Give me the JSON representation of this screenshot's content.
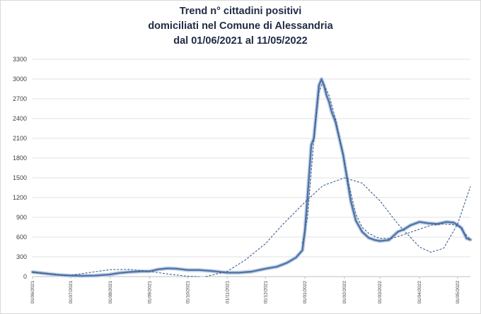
{
  "title": {
    "line1": "Trend n° cittadini positivi",
    "line2": "domiciliati nel Comune di Alessandria",
    "line3": "dal 01/06/2021 al 11/05/2022"
  },
  "colors": {
    "series": "#4f74a8",
    "series_shadow": "#c5d3e6",
    "trend": "#3d5f92",
    "grid": "#d9d9d9",
    "axis": "#bfbfbf"
  },
  "chart_data": {
    "type": "line",
    "title": "Trend n° cittadini positivi domiciliati nel Comune di Alessandria dal 01/06/2021 al 11/05/2022",
    "xlabel": "",
    "ylabel": "",
    "ylim": [
      0,
      3300
    ],
    "yticks": [
      0,
      300,
      600,
      900,
      1200,
      1500,
      1800,
      2100,
      2400,
      2700,
      3000,
      3300
    ],
    "xlim": [
      "2021-06-01",
      "2022-05-11"
    ],
    "xticks": [
      "01/06/2021",
      "01/07/2021",
      "01/08/2021",
      "01/09/2021",
      "01/10/2021",
      "01/11/2021",
      "01/12/2021",
      "01/01/2022",
      "01/02/2022",
      "01/03/2022",
      "01/04/2022",
      "01/05/2022"
    ],
    "grid": "horizontal",
    "legend": "none",
    "series": [
      {
        "style": "solid",
        "x": [
          "2021-06-01",
          "2021-06-08",
          "2021-06-15",
          "2021-06-22",
          "2021-07-01",
          "2021-07-10",
          "2021-07-20",
          "2021-07-31",
          "2021-08-08",
          "2021-08-16",
          "2021-08-26",
          "2021-09-01",
          "2021-09-08",
          "2021-09-15",
          "2021-09-22",
          "2021-10-01",
          "2021-10-10",
          "2021-10-20",
          "2021-11-01",
          "2021-11-10",
          "2021-11-20",
          "2021-12-01",
          "2021-12-10",
          "2021-12-18",
          "2021-12-25",
          "2021-12-30",
          "2022-01-01",
          "2022-01-03",
          "2022-01-06",
          "2022-01-08",
          "2022-01-10",
          "2022-01-12",
          "2022-01-14",
          "2022-01-16",
          "2022-01-18",
          "2022-01-20",
          "2022-01-22",
          "2022-01-25",
          "2022-01-28",
          "2022-01-31",
          "2022-02-03",
          "2022-02-06",
          "2022-02-10",
          "2022-02-15",
          "2022-02-20",
          "2022-02-25",
          "2022-03-01",
          "2022-03-08",
          "2022-03-15",
          "2022-03-20",
          "2022-03-25",
          "2022-04-01",
          "2022-04-08",
          "2022-04-15",
          "2022-04-22",
          "2022-04-28",
          "2022-05-04",
          "2022-05-08",
          "2022-05-11"
        ],
        "values": [
          70,
          55,
          40,
          25,
          15,
          12,
          15,
          30,
          55,
          70,
          80,
          80,
          110,
          125,
          120,
          100,
          100,
          85,
          60,
          60,
          75,
          120,
          150,
          210,
          290,
          400,
          700,
          1200,
          2000,
          2100,
          2500,
          2900,
          3000,
          2900,
          2750,
          2650,
          2500,
          2350,
          2100,
          1850,
          1500,
          1150,
          850,
          680,
          590,
          555,
          540,
          555,
          680,
          720,
          780,
          830,
          810,
          800,
          830,
          820,
          740,
          580,
          560
        ]
      },
      {
        "style": "dashed",
        "x": [
          "2021-06-01",
          "2021-06-15",
          "2021-07-01",
          "2021-07-15",
          "2021-08-01",
          "2021-08-15",
          "2021-09-01",
          "2021-09-15",
          "2021-10-01",
          "2021-10-10"
        ],
        "values": [
          60,
          35,
          20,
          60,
          105,
          110,
          80,
          40,
          5,
          0
        ]
      },
      {
        "style": "dashed",
        "x": [
          "2021-10-15",
          "2021-11-01",
          "2021-11-15",
          "2021-12-01",
          "2021-12-15",
          "2022-01-01",
          "2022-01-15",
          "2022-02-01",
          "2022-02-15",
          "2022-03-01",
          "2022-03-15",
          "2022-04-01",
          "2022-04-10",
          "2022-04-20",
          "2022-05-01",
          "2022-05-11"
        ],
        "values": [
          0,
          80,
          250,
          500,
          800,
          1130,
          1380,
          1500,
          1420,
          1150,
          800,
          450,
          370,
          430,
          800,
          1370
        ]
      },
      {
        "style": "dashed",
        "x": [
          "2021-12-30",
          "2022-01-03",
          "2022-01-06",
          "2022-01-09",
          "2022-01-12",
          "2022-01-15",
          "2022-01-20",
          "2022-01-25",
          "2022-01-31",
          "2022-02-05",
          "2022-02-10",
          "2022-02-15",
          "2022-02-20",
          "2022-02-25",
          "2022-03-01",
          "2022-03-10",
          "2022-03-20",
          "2022-04-01",
          "2022-04-10",
          "2022-04-20",
          "2022-05-01",
          "2022-05-11"
        ],
        "values": [
          500,
          900,
          1600,
          2300,
          2800,
          2950,
          2750,
          2400,
          1850,
          1350,
          950,
          750,
          660,
          610,
          580,
          580,
          640,
          720,
          780,
          800,
          780,
          560
        ]
      }
    ]
  }
}
